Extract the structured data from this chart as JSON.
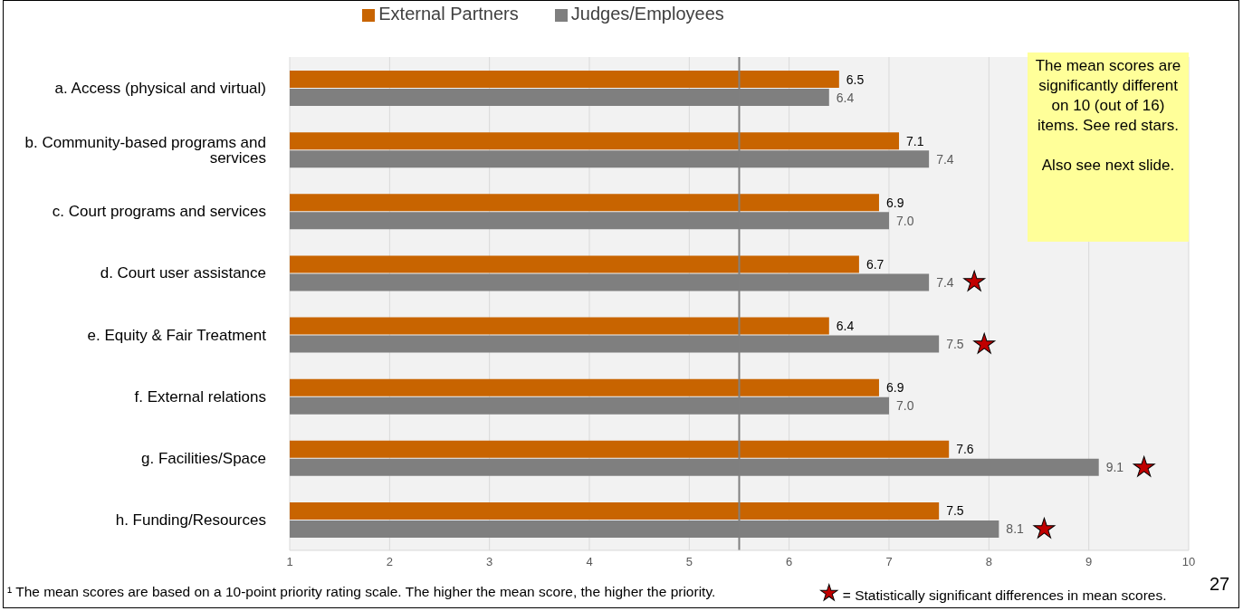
{
  "chart_data": {
    "type": "bar",
    "orientation": "horizontal",
    "categories": [
      "a. Access (physical and virtual)",
      "b. Community-based programs and services",
      "c. Court programs and services",
      "d. Court user assistance",
      "e. Equity & Fair Treatment",
      "f. External relations",
      "g. Facilities/Space",
      "h. Funding/Resources"
    ],
    "series": [
      {
        "name": "External Partners",
        "color": "#c86400",
        "values": [
          6.5,
          7.1,
          6.9,
          6.7,
          6.4,
          6.9,
          7.6,
          7.5
        ],
        "value_labels": [
          "6.5",
          "7.1",
          "6.9",
          "6.7",
          "6.4",
          "6.9",
          "7.6",
          "7.5"
        ]
      },
      {
        "name": "Judges/Employees",
        "color": "#7f7f7f",
        "values": [
          6.4,
          7.4,
          7.0,
          7.4,
          7.5,
          7.0,
          9.1,
          8.1
        ],
        "value_labels": [
          "6.4",
          "7.4",
          "7.0",
          "7.4",
          "7.5",
          "7.0",
          "9.1",
          "8.1"
        ]
      }
    ],
    "xlim": [
      1,
      10
    ],
    "xticks": [
      1,
      2,
      3,
      4,
      5,
      6,
      7,
      8,
      9,
      10
    ],
    "grid": "x",
    "legend": "top",
    "ref_lines": [
      {
        "axis": "x",
        "value": 5.5,
        "color": "#808080"
      }
    ],
    "annotations": [
      "The mean scores are significantly different on 10 (out of 16) items. See red stars.",
      "Also see next slide.",
      "¹ The mean scores are based on a 10-point priority rating scale.  The higher the mean score, the higher the priority.",
      "★ = Statistically significant differences in mean scores.",
      "27",
      {
        "text": "★",
        "x": 7.4,
        "y": "d. Court user assistance"
      },
      {
        "text": "★",
        "x": 7.5,
        "y": "e. Equity & Fair Treatment"
      },
      {
        "text": "★",
        "x": 9.1,
        "y": "g. Facilities/Space"
      },
      {
        "text": "★",
        "x": 8.1,
        "y": "h. Funding/Resources"
      }
    ]
  }
}
